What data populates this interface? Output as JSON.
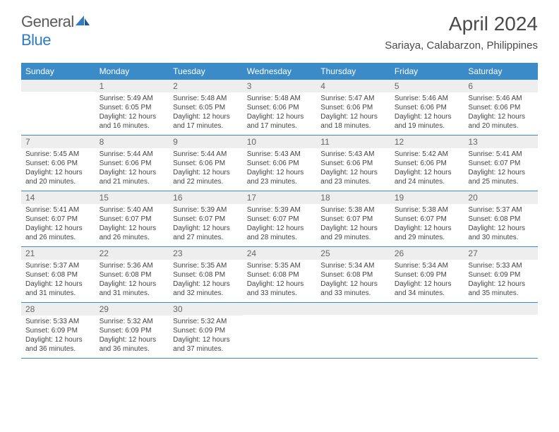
{
  "logo": {
    "text1": "General",
    "text2": "Blue"
  },
  "title": "April 2024",
  "location": "Sariaya, Calabarzon, Philippines",
  "colors": {
    "header_bg": "#3b8bc9",
    "header_text": "#ffffff",
    "daynum_bg": "#eeeeee",
    "row_border": "#3b8bc9",
    "body_text": "#444444",
    "logo_gray": "#5a5a5a",
    "logo_blue": "#2e7cc4"
  },
  "typography": {
    "title_fontsize": 28,
    "location_fontsize": 15,
    "header_fontsize": 12,
    "daynum_fontsize": 12,
    "body_fontsize": 10
  },
  "day_headers": [
    "Sunday",
    "Monday",
    "Tuesday",
    "Wednesday",
    "Thursday",
    "Friday",
    "Saturday"
  ],
  "weeks": [
    [
      {
        "num": "",
        "sunrise": "",
        "sunset": "",
        "daylight1": "",
        "daylight2": ""
      },
      {
        "num": "1",
        "sunrise": "Sunrise: 5:49 AM",
        "sunset": "Sunset: 6:05 PM",
        "daylight1": "Daylight: 12 hours",
        "daylight2": "and 16 minutes."
      },
      {
        "num": "2",
        "sunrise": "Sunrise: 5:48 AM",
        "sunset": "Sunset: 6:05 PM",
        "daylight1": "Daylight: 12 hours",
        "daylight2": "and 17 minutes."
      },
      {
        "num": "3",
        "sunrise": "Sunrise: 5:48 AM",
        "sunset": "Sunset: 6:06 PM",
        "daylight1": "Daylight: 12 hours",
        "daylight2": "and 17 minutes."
      },
      {
        "num": "4",
        "sunrise": "Sunrise: 5:47 AM",
        "sunset": "Sunset: 6:06 PM",
        "daylight1": "Daylight: 12 hours",
        "daylight2": "and 18 minutes."
      },
      {
        "num": "5",
        "sunrise": "Sunrise: 5:46 AM",
        "sunset": "Sunset: 6:06 PM",
        "daylight1": "Daylight: 12 hours",
        "daylight2": "and 19 minutes."
      },
      {
        "num": "6",
        "sunrise": "Sunrise: 5:46 AM",
        "sunset": "Sunset: 6:06 PM",
        "daylight1": "Daylight: 12 hours",
        "daylight2": "and 20 minutes."
      }
    ],
    [
      {
        "num": "7",
        "sunrise": "Sunrise: 5:45 AM",
        "sunset": "Sunset: 6:06 PM",
        "daylight1": "Daylight: 12 hours",
        "daylight2": "and 20 minutes."
      },
      {
        "num": "8",
        "sunrise": "Sunrise: 5:44 AM",
        "sunset": "Sunset: 6:06 PM",
        "daylight1": "Daylight: 12 hours",
        "daylight2": "and 21 minutes."
      },
      {
        "num": "9",
        "sunrise": "Sunrise: 5:44 AM",
        "sunset": "Sunset: 6:06 PM",
        "daylight1": "Daylight: 12 hours",
        "daylight2": "and 22 minutes."
      },
      {
        "num": "10",
        "sunrise": "Sunrise: 5:43 AM",
        "sunset": "Sunset: 6:06 PM",
        "daylight1": "Daylight: 12 hours",
        "daylight2": "and 23 minutes."
      },
      {
        "num": "11",
        "sunrise": "Sunrise: 5:43 AM",
        "sunset": "Sunset: 6:06 PM",
        "daylight1": "Daylight: 12 hours",
        "daylight2": "and 23 minutes."
      },
      {
        "num": "12",
        "sunrise": "Sunrise: 5:42 AM",
        "sunset": "Sunset: 6:06 PM",
        "daylight1": "Daylight: 12 hours",
        "daylight2": "and 24 minutes."
      },
      {
        "num": "13",
        "sunrise": "Sunrise: 5:41 AM",
        "sunset": "Sunset: 6:07 PM",
        "daylight1": "Daylight: 12 hours",
        "daylight2": "and 25 minutes."
      }
    ],
    [
      {
        "num": "14",
        "sunrise": "Sunrise: 5:41 AM",
        "sunset": "Sunset: 6:07 PM",
        "daylight1": "Daylight: 12 hours",
        "daylight2": "and 26 minutes."
      },
      {
        "num": "15",
        "sunrise": "Sunrise: 5:40 AM",
        "sunset": "Sunset: 6:07 PM",
        "daylight1": "Daylight: 12 hours",
        "daylight2": "and 26 minutes."
      },
      {
        "num": "16",
        "sunrise": "Sunrise: 5:39 AM",
        "sunset": "Sunset: 6:07 PM",
        "daylight1": "Daylight: 12 hours",
        "daylight2": "and 27 minutes."
      },
      {
        "num": "17",
        "sunrise": "Sunrise: 5:39 AM",
        "sunset": "Sunset: 6:07 PM",
        "daylight1": "Daylight: 12 hours",
        "daylight2": "and 28 minutes."
      },
      {
        "num": "18",
        "sunrise": "Sunrise: 5:38 AM",
        "sunset": "Sunset: 6:07 PM",
        "daylight1": "Daylight: 12 hours",
        "daylight2": "and 29 minutes."
      },
      {
        "num": "19",
        "sunrise": "Sunrise: 5:38 AM",
        "sunset": "Sunset: 6:07 PM",
        "daylight1": "Daylight: 12 hours",
        "daylight2": "and 29 minutes."
      },
      {
        "num": "20",
        "sunrise": "Sunrise: 5:37 AM",
        "sunset": "Sunset: 6:08 PM",
        "daylight1": "Daylight: 12 hours",
        "daylight2": "and 30 minutes."
      }
    ],
    [
      {
        "num": "21",
        "sunrise": "Sunrise: 5:37 AM",
        "sunset": "Sunset: 6:08 PM",
        "daylight1": "Daylight: 12 hours",
        "daylight2": "and 31 minutes."
      },
      {
        "num": "22",
        "sunrise": "Sunrise: 5:36 AM",
        "sunset": "Sunset: 6:08 PM",
        "daylight1": "Daylight: 12 hours",
        "daylight2": "and 31 minutes."
      },
      {
        "num": "23",
        "sunrise": "Sunrise: 5:35 AM",
        "sunset": "Sunset: 6:08 PM",
        "daylight1": "Daylight: 12 hours",
        "daylight2": "and 32 minutes."
      },
      {
        "num": "24",
        "sunrise": "Sunrise: 5:35 AM",
        "sunset": "Sunset: 6:08 PM",
        "daylight1": "Daylight: 12 hours",
        "daylight2": "and 33 minutes."
      },
      {
        "num": "25",
        "sunrise": "Sunrise: 5:34 AM",
        "sunset": "Sunset: 6:08 PM",
        "daylight1": "Daylight: 12 hours",
        "daylight2": "and 33 minutes."
      },
      {
        "num": "26",
        "sunrise": "Sunrise: 5:34 AM",
        "sunset": "Sunset: 6:09 PM",
        "daylight1": "Daylight: 12 hours",
        "daylight2": "and 34 minutes."
      },
      {
        "num": "27",
        "sunrise": "Sunrise: 5:33 AM",
        "sunset": "Sunset: 6:09 PM",
        "daylight1": "Daylight: 12 hours",
        "daylight2": "and 35 minutes."
      }
    ],
    [
      {
        "num": "28",
        "sunrise": "Sunrise: 5:33 AM",
        "sunset": "Sunset: 6:09 PM",
        "daylight1": "Daylight: 12 hours",
        "daylight2": "and 36 minutes."
      },
      {
        "num": "29",
        "sunrise": "Sunrise: 5:32 AM",
        "sunset": "Sunset: 6:09 PM",
        "daylight1": "Daylight: 12 hours",
        "daylight2": "and 36 minutes."
      },
      {
        "num": "30",
        "sunrise": "Sunrise: 5:32 AM",
        "sunset": "Sunset: 6:09 PM",
        "daylight1": "Daylight: 12 hours",
        "daylight2": "and 37 minutes."
      },
      {
        "num": "",
        "sunrise": "",
        "sunset": "",
        "daylight1": "",
        "daylight2": ""
      },
      {
        "num": "",
        "sunrise": "",
        "sunset": "",
        "daylight1": "",
        "daylight2": ""
      },
      {
        "num": "",
        "sunrise": "",
        "sunset": "",
        "daylight1": "",
        "daylight2": ""
      },
      {
        "num": "",
        "sunrise": "",
        "sunset": "",
        "daylight1": "",
        "daylight2": ""
      }
    ]
  ]
}
